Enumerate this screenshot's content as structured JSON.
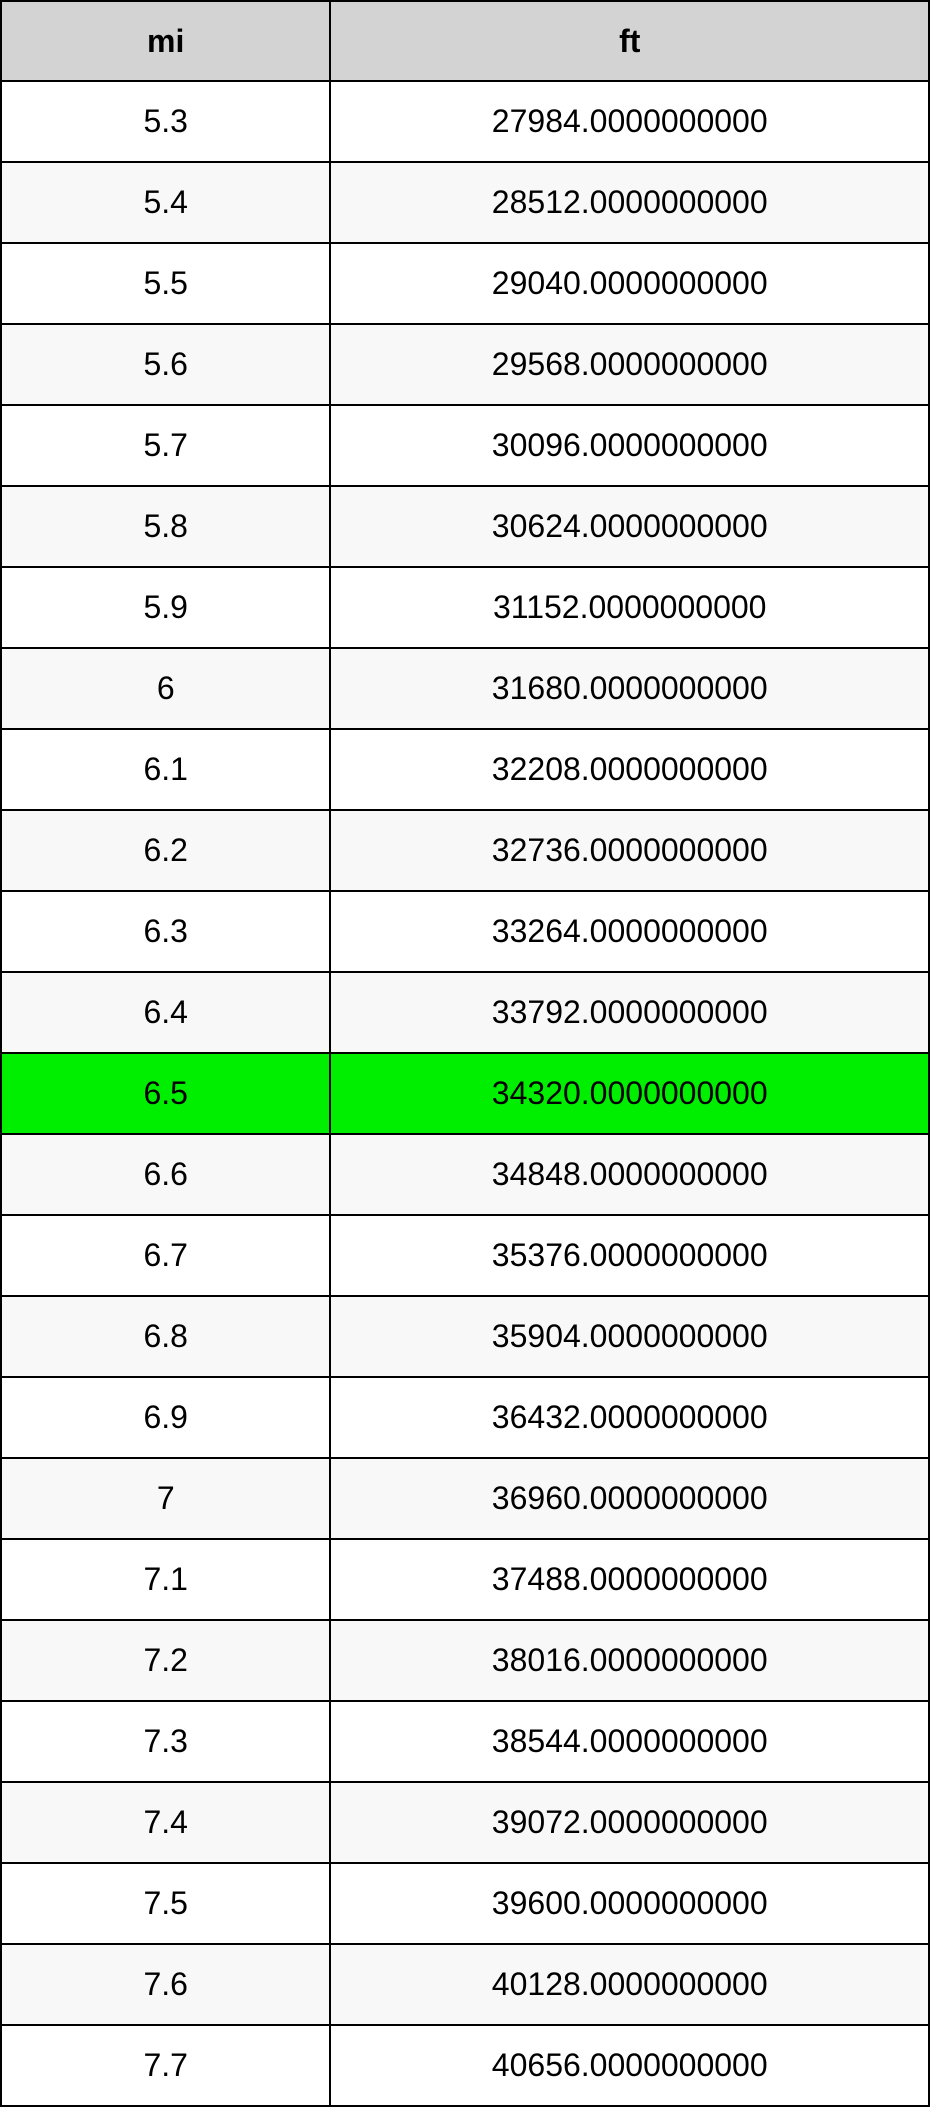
{
  "table": {
    "type": "table",
    "columns": [
      {
        "key": "mi",
        "label": "mi",
        "width_pct": 35.5
      },
      {
        "key": "ft",
        "label": "ft",
        "width_pct": 64.5
      }
    ],
    "header_bg": "#d3d3d3",
    "border_color": "#000000",
    "row_bg_even": "#ffffff",
    "row_bg_odd": "#f8f8f8",
    "highlight_bg": "#00ee00",
    "font_size": 32,
    "text_color": "#000000",
    "rows": [
      {
        "mi": "5.3",
        "ft": "27984.0000000000",
        "highlight": false
      },
      {
        "mi": "5.4",
        "ft": "28512.0000000000",
        "highlight": false
      },
      {
        "mi": "5.5",
        "ft": "29040.0000000000",
        "highlight": false
      },
      {
        "mi": "5.6",
        "ft": "29568.0000000000",
        "highlight": false
      },
      {
        "mi": "5.7",
        "ft": "30096.0000000000",
        "highlight": false
      },
      {
        "mi": "5.8",
        "ft": "30624.0000000000",
        "highlight": false
      },
      {
        "mi": "5.9",
        "ft": "31152.0000000000",
        "highlight": false
      },
      {
        "mi": "6",
        "ft": "31680.0000000000",
        "highlight": false
      },
      {
        "mi": "6.1",
        "ft": "32208.0000000000",
        "highlight": false
      },
      {
        "mi": "6.2",
        "ft": "32736.0000000000",
        "highlight": false
      },
      {
        "mi": "6.3",
        "ft": "33264.0000000000",
        "highlight": false
      },
      {
        "mi": "6.4",
        "ft": "33792.0000000000",
        "highlight": false
      },
      {
        "mi": "6.5",
        "ft": "34320.0000000000",
        "highlight": true
      },
      {
        "mi": "6.6",
        "ft": "34848.0000000000",
        "highlight": false
      },
      {
        "mi": "6.7",
        "ft": "35376.0000000000",
        "highlight": false
      },
      {
        "mi": "6.8",
        "ft": "35904.0000000000",
        "highlight": false
      },
      {
        "mi": "6.9",
        "ft": "36432.0000000000",
        "highlight": false
      },
      {
        "mi": "7",
        "ft": "36960.0000000000",
        "highlight": false
      },
      {
        "mi": "7.1",
        "ft": "37488.0000000000",
        "highlight": false
      },
      {
        "mi": "7.2",
        "ft": "38016.0000000000",
        "highlight": false
      },
      {
        "mi": "7.3",
        "ft": "38544.0000000000",
        "highlight": false
      },
      {
        "mi": "7.4",
        "ft": "39072.0000000000",
        "highlight": false
      },
      {
        "mi": "7.5",
        "ft": "39600.0000000000",
        "highlight": false
      },
      {
        "mi": "7.6",
        "ft": "40128.0000000000",
        "highlight": false
      },
      {
        "mi": "7.7",
        "ft": "40656.0000000000",
        "highlight": false
      }
    ]
  }
}
